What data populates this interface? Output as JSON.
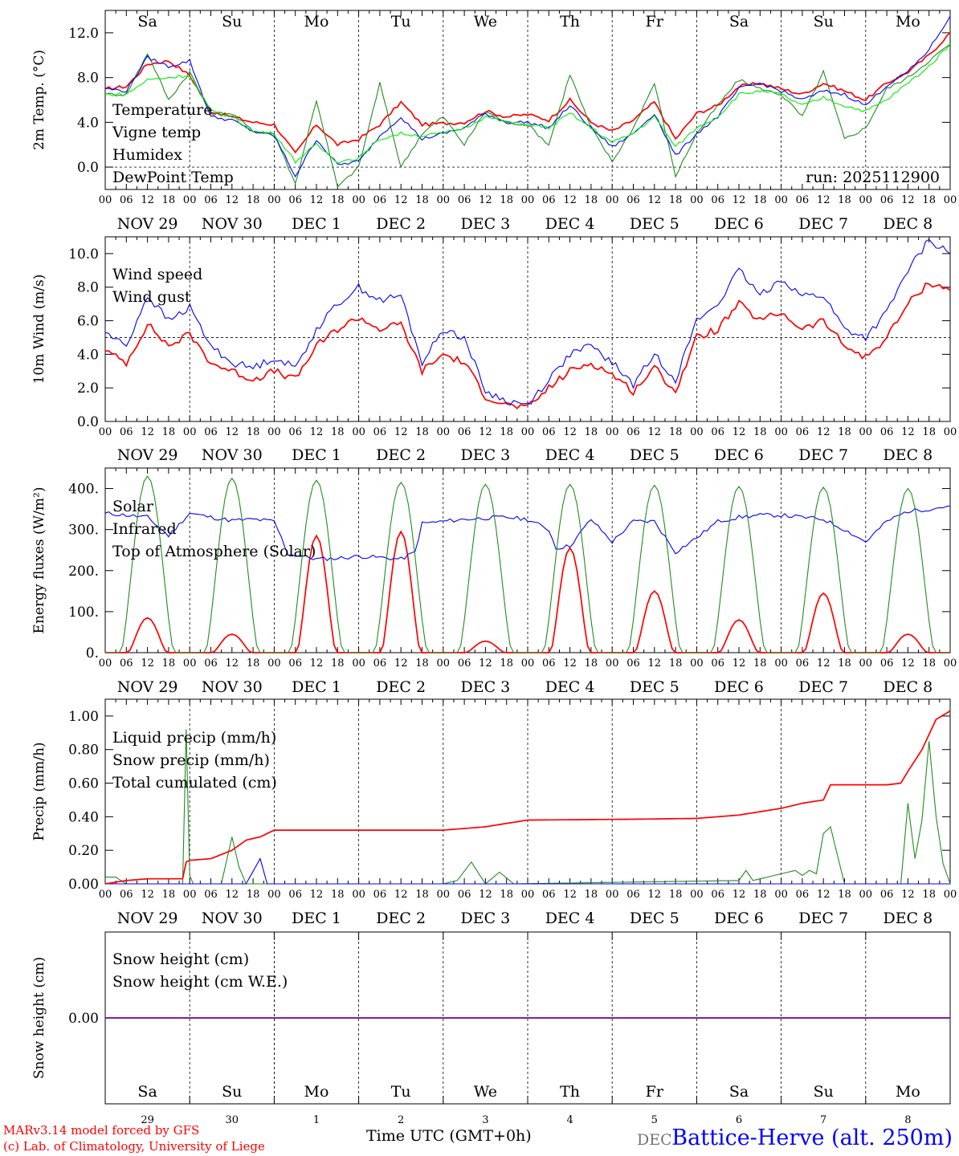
{
  "run_label": "run: 2025112900",
  "axis": {
    "xlabel": "Time UTC (GMT+0h)",
    "hour_labels": [
      "00",
      "06",
      "12",
      "18"
    ],
    "end_hour_label": "00",
    "date_labels": [
      "NOV 29",
      "NOV 30",
      "DEC  1",
      "DEC  2",
      "DEC  3",
      "DEC  4",
      "DEC  5",
      "DEC  6",
      "DEC  7",
      "DEC  8"
    ],
    "day_names": [
      "Sa",
      "Su",
      "Mo",
      "Tu",
      "We",
      "Th",
      "Fr",
      "Sa",
      "Su",
      "Mo"
    ],
    "day_numbers": [
      "29",
      "30",
      "1",
      "2",
      "3",
      "4",
      "5",
      "6",
      "7",
      "8"
    ],
    "bottom_overlap_label": "DEC"
  },
  "colors": {
    "red": "#ff0000",
    "green": "#228b22",
    "blue": "#0000ff",
    "lightgreen": "#00ee00",
    "black": "#000000"
  },
  "footer": {
    "model_line": "MARv3.14 model forced by GFS",
    "lab_line": "(c) Lab. of Climatology, University of Liege",
    "location": "Battice-Herve (alt. 250m)"
  },
  "chart_data": [
    {
      "type": "line",
      "ylabel": "2m Temp. (°C)",
      "ylim": [
        -2.0,
        14.0
      ],
      "y_ticks": [
        0.0,
        4.0,
        8.0,
        12.0
      ],
      "y_tick_labels": [
        "0.0",
        "4.0",
        "8.0",
        "12.0"
      ],
      "dashed_ref": 0.0,
      "x_unit": "hours since 2025-11-29 00 UTC",
      "series": [
        {
          "name": "Temperature",
          "color": "red",
          "x": [
            0,
            6,
            12,
            18,
            24,
            30,
            36,
            42,
            48,
            54,
            60,
            66,
            72,
            78,
            84,
            90,
            96,
            102,
            108,
            114,
            120,
            126,
            132,
            138,
            144,
            150,
            156,
            162,
            168,
            174,
            180,
            186,
            192,
            198,
            204,
            210,
            216,
            222,
            228,
            234,
            240
          ],
          "y": [
            7.0,
            7.2,
            9.2,
            9.5,
            8.2,
            5.0,
            4.5,
            4.0,
            3.8,
            1.2,
            3.8,
            2.0,
            2.5,
            3.8,
            5.8,
            3.8,
            3.9,
            4.0,
            5.0,
            4.5,
            4.7,
            4.2,
            6.0,
            4.0,
            3.2,
            4.2,
            5.8,
            2.5,
            4.8,
            5.5,
            7.2,
            7.5,
            7.0,
            6.5,
            7.5,
            6.8,
            6.0,
            7.5,
            8.5,
            10.0,
            12.0
          ]
        },
        {
          "name": "Vigne temp",
          "color": "green",
          "x": [
            0,
            6,
            12,
            18,
            24,
            30,
            36,
            42,
            48,
            54,
            60,
            66,
            72,
            78,
            84,
            90,
            96,
            102,
            108,
            114,
            120,
            126,
            132,
            138,
            144,
            150,
            156,
            162,
            168,
            174,
            180,
            186,
            192,
            198,
            204,
            210,
            216,
            222,
            228,
            234,
            240
          ],
          "y": [
            6.5,
            6.5,
            10.2,
            6.0,
            8.5,
            4.8,
            4.8,
            3.2,
            3.0,
            -1.5,
            6.0,
            -1.8,
            0.0,
            7.5,
            0.0,
            3.0,
            4.5,
            2.0,
            5.0,
            4.0,
            3.8,
            2.0,
            8.3,
            3.5,
            0.5,
            3.5,
            7.5,
            -0.8,
            3.0,
            5.5,
            7.8,
            7.0,
            6.5,
            4.5,
            8.5,
            2.5,
            3.5,
            7.0,
            8.0,
            9.5,
            11.0
          ]
        },
        {
          "name": "Humidex",
          "color": "blue",
          "x": [
            0,
            6,
            12,
            18,
            24,
            30,
            36,
            42,
            48,
            54,
            60,
            66,
            72,
            78,
            84,
            90,
            96,
            102,
            108,
            114,
            120,
            126,
            132,
            138,
            144,
            150,
            156,
            162,
            168,
            174,
            180,
            186,
            192,
            198,
            204,
            210,
            216,
            222,
            228,
            234,
            240
          ],
          "y": [
            7.0,
            6.8,
            9.8,
            9.0,
            9.5,
            4.5,
            4.2,
            3.2,
            2.8,
            -0.8,
            2.5,
            0.2,
            0.5,
            2.8,
            4.5,
            2.5,
            3.0,
            3.5,
            4.8,
            4.0,
            4.0,
            3.5,
            5.5,
            3.5,
            1.8,
            3.0,
            4.8,
            1.0,
            3.0,
            4.5,
            7.0,
            7.5,
            6.8,
            6.0,
            6.8,
            6.5,
            5.5,
            7.3,
            8.5,
            10.5,
            13.5
          ]
        },
        {
          "name": "DewPoint Temp",
          "color": "lightgreen",
          "x": [
            0,
            6,
            12,
            18,
            24,
            30,
            36,
            42,
            48,
            54,
            60,
            66,
            72,
            78,
            84,
            90,
            96,
            102,
            108,
            114,
            120,
            126,
            132,
            138,
            144,
            150,
            156,
            162,
            168,
            174,
            180,
            186,
            192,
            198,
            204,
            210,
            216,
            222,
            228,
            234,
            240
          ],
          "y": [
            6.5,
            6.5,
            7.8,
            8.0,
            8.2,
            5.0,
            4.5,
            3.2,
            3.0,
            0.5,
            2.0,
            0.5,
            0.8,
            2.5,
            3.0,
            2.8,
            3.0,
            3.5,
            4.5,
            4.0,
            3.8,
            3.5,
            4.8,
            3.5,
            2.2,
            3.0,
            4.5,
            1.8,
            3.5,
            4.5,
            6.5,
            6.8,
            6.5,
            5.5,
            6.2,
            5.5,
            5.0,
            6.0,
            7.5,
            9.0,
            11.0
          ]
        }
      ]
    },
    {
      "type": "line",
      "ylabel": "10m Wind (m/s)",
      "ylim": [
        0.0,
        11.0
      ],
      "y_ticks": [
        0.0,
        2.0,
        4.0,
        6.0,
        8.0,
        10.0
      ],
      "y_tick_labels": [
        "0.0",
        "2.0",
        "4.0",
        "6.0",
        "8.0",
        "10.0"
      ],
      "dashed_ref": 5.0,
      "x_unit": "hours since 2025-11-29 00 UTC",
      "series": [
        {
          "name": "Wind speed",
          "color": "red",
          "x": [
            0,
            6,
            12,
            18,
            24,
            30,
            36,
            42,
            48,
            54,
            60,
            66,
            72,
            78,
            84,
            90,
            96,
            102,
            108,
            114,
            120,
            126,
            132,
            138,
            144,
            150,
            156,
            162,
            168,
            174,
            180,
            186,
            192,
            198,
            204,
            210,
            216,
            222,
            228,
            234,
            240
          ],
          "y": [
            4.2,
            3.5,
            5.8,
            4.5,
            5.2,
            3.5,
            3.0,
            2.5,
            3.0,
            2.5,
            4.5,
            5.5,
            6.2,
            5.5,
            5.8,
            3.0,
            4.0,
            3.5,
            1.5,
            1.0,
            0.8,
            2.0,
            3.0,
            3.5,
            2.8,
            1.8,
            3.2,
            1.8,
            5.0,
            5.5,
            7.0,
            6.0,
            6.5,
            5.5,
            6.0,
            4.5,
            3.8,
            5.0,
            7.0,
            8.3,
            7.8
          ]
        },
        {
          "name": "Wind gust",
          "color": "blue",
          "x": [
            0,
            6,
            12,
            18,
            24,
            30,
            36,
            42,
            48,
            54,
            60,
            66,
            72,
            78,
            84,
            90,
            96,
            102,
            108,
            114,
            120,
            126,
            132,
            138,
            144,
            150,
            156,
            162,
            168,
            174,
            180,
            186,
            192,
            198,
            204,
            210,
            216,
            222,
            228,
            234,
            240
          ],
          "y": [
            5.3,
            4.5,
            7.5,
            6.0,
            6.8,
            4.5,
            3.5,
            3.2,
            3.8,
            3.2,
            5.5,
            7.0,
            8.0,
            7.2,
            7.5,
            3.5,
            5.5,
            5.0,
            1.8,
            1.2,
            1.0,
            2.5,
            4.0,
            4.5,
            3.5,
            2.2,
            4.0,
            2.5,
            6.0,
            7.0,
            9.0,
            7.5,
            8.5,
            7.5,
            7.5,
            5.5,
            5.0,
            6.5,
            9.0,
            10.8,
            10.0
          ]
        }
      ]
    },
    {
      "type": "line",
      "ylabel": "Energy fluxes (W/m²)",
      "ylim": [
        0.0,
        450.0
      ],
      "y_ticks": [
        0,
        100,
        200,
        300,
        400
      ],
      "y_tick_labels": [
        "0.",
        "100.",
        "200.",
        "300.",
        "400."
      ],
      "x_unit": "hours since 2025-11-29 00 UTC",
      "series": [
        {
          "name": "Solar",
          "color": "red",
          "peaks": [
            {
              "t": 12,
              "v": 85
            },
            {
              "t": 36,
              "v": 45
            },
            {
              "t": 60,
              "v": 285
            },
            {
              "t": 84,
              "v": 295
            },
            {
              "t": 108,
              "v": 28
            },
            {
              "t": 132,
              "v": 255
            },
            {
              "t": 156,
              "v": 150
            },
            {
              "t": 180,
              "v": 80
            },
            {
              "t": 204,
              "v": 145
            },
            {
              "t": 228,
              "v": 45
            }
          ]
        },
        {
          "name": "Infrared",
          "color": "blue",
          "x": [
            0,
            6,
            12,
            18,
            24,
            30,
            36,
            42,
            48,
            52,
            56,
            60,
            66,
            72,
            78,
            84,
            88,
            90,
            96,
            102,
            108,
            114,
            120,
            126,
            128,
            132,
            138,
            144,
            150,
            156,
            162,
            168,
            174,
            180,
            186,
            192,
            198,
            204,
            210,
            216,
            222,
            228,
            234,
            240
          ],
          "y": [
            340,
            335,
            330,
            285,
            340,
            330,
            322,
            325,
            320,
            240,
            235,
            228,
            230,
            235,
            232,
            228,
            245,
            315,
            320,
            325,
            328,
            330,
            325,
            300,
            255,
            260,
            325,
            270,
            320,
            320,
            245,
            280,
            320,
            330,
            335,
            335,
            330,
            325,
            300,
            270,
            320,
            345,
            350,
            358
          ]
        },
        {
          "name": "Top of Atmosphere (Solar)",
          "color": "green",
          "peaks": [
            {
              "t": 12,
              "v": 430
            },
            {
              "t": 36,
              "v": 425
            },
            {
              "t": 60,
              "v": 420
            },
            {
              "t": 84,
              "v": 415
            },
            {
              "t": 108,
              "v": 410
            },
            {
              "t": 132,
              "v": 410
            },
            {
              "t": 156,
              "v": 408
            },
            {
              "t": 180,
              "v": 405
            },
            {
              "t": 204,
              "v": 403
            },
            {
              "t": 228,
              "v": 400
            }
          ]
        }
      ]
    },
    {
      "type": "line",
      "ylabel": "Precip (mm/h)",
      "ylim": [
        0.0,
        1.1
      ],
      "y_ticks": [
        0.0,
        0.2,
        0.4,
        0.6,
        0.8,
        1.0
      ],
      "y_tick_labels": [
        "0.00",
        "0.20",
        "0.40",
        "0.60",
        "0.80",
        "1.00"
      ],
      "x_unit": "hours since 2025-11-29 00 UTC",
      "series": [
        {
          "name": "Liquid precip (mm/h)",
          "color": "green",
          "x": [
            0,
            3,
            6,
            18,
            22,
            23,
            24,
            25,
            27,
            33,
            36,
            38,
            40,
            42,
            46,
            48,
            60,
            96,
            100,
            104,
            108,
            112,
            116,
            180,
            182,
            184,
            190,
            196,
            198,
            200,
            202,
            204,
            206,
            210,
            226,
            228,
            230,
            232,
            234,
            236,
            238,
            240
          ],
          "y": [
            0.04,
            0.04,
            0.0,
            0.0,
            0.0,
            0.92,
            0.05,
            0.0,
            0.0,
            0.0,
            0.28,
            0.1,
            0.0,
            0.0,
            0.0,
            0.0,
            0.0,
            0.0,
            0.02,
            0.13,
            0.0,
            0.07,
            0.0,
            0.02,
            0.08,
            0.02,
            0.05,
            0.08,
            0.05,
            0.08,
            0.06,
            0.3,
            0.34,
            0.0,
            0.0,
            0.48,
            0.15,
            0.38,
            0.85,
            0.4,
            0.12,
            0.0
          ]
        },
        {
          "name": "Snow precip (mm/h)",
          "color": "blue",
          "x": [
            0,
            40,
            44,
            46,
            48,
            240
          ],
          "y": [
            0.0,
            0.0,
            0.15,
            0.0,
            0.0,
            0.0
          ]
        },
        {
          "name": "Total cumulated (cm)",
          "color": "red",
          "x": [
            0,
            6,
            12,
            18,
            22,
            23,
            24,
            30,
            36,
            40,
            44,
            48,
            96,
            108,
            120,
            150,
            168,
            180,
            186,
            192,
            198,
            204,
            206,
            210,
            222,
            226,
            228,
            232,
            236,
            240
          ],
          "y": [
            0.0,
            0.02,
            0.03,
            0.03,
            0.03,
            0.13,
            0.14,
            0.15,
            0.2,
            0.26,
            0.28,
            0.32,
            0.32,
            0.34,
            0.38,
            0.385,
            0.39,
            0.41,
            0.43,
            0.45,
            0.48,
            0.5,
            0.59,
            0.59,
            0.59,
            0.6,
            0.67,
            0.8,
            0.98,
            1.03
          ]
        }
      ]
    },
    {
      "type": "line",
      "ylabel": "Snow height (cm)",
      "ylim": [
        -1.0,
        1.0
      ],
      "y_ticks": [
        0.0
      ],
      "y_tick_labels": [
        "0.00"
      ],
      "x_unit": "hours since 2025-11-29 00 UTC",
      "series": [
        {
          "name": "Snow height (cm)",
          "color": "red",
          "x": [
            0,
            240
          ],
          "y": [
            0.0,
            0.0
          ]
        },
        {
          "name": "Snow height (cm W.E.)",
          "color": "blue",
          "x": [
            0,
            240
          ],
          "y": [
            0.0,
            0.0
          ]
        }
      ]
    }
  ]
}
